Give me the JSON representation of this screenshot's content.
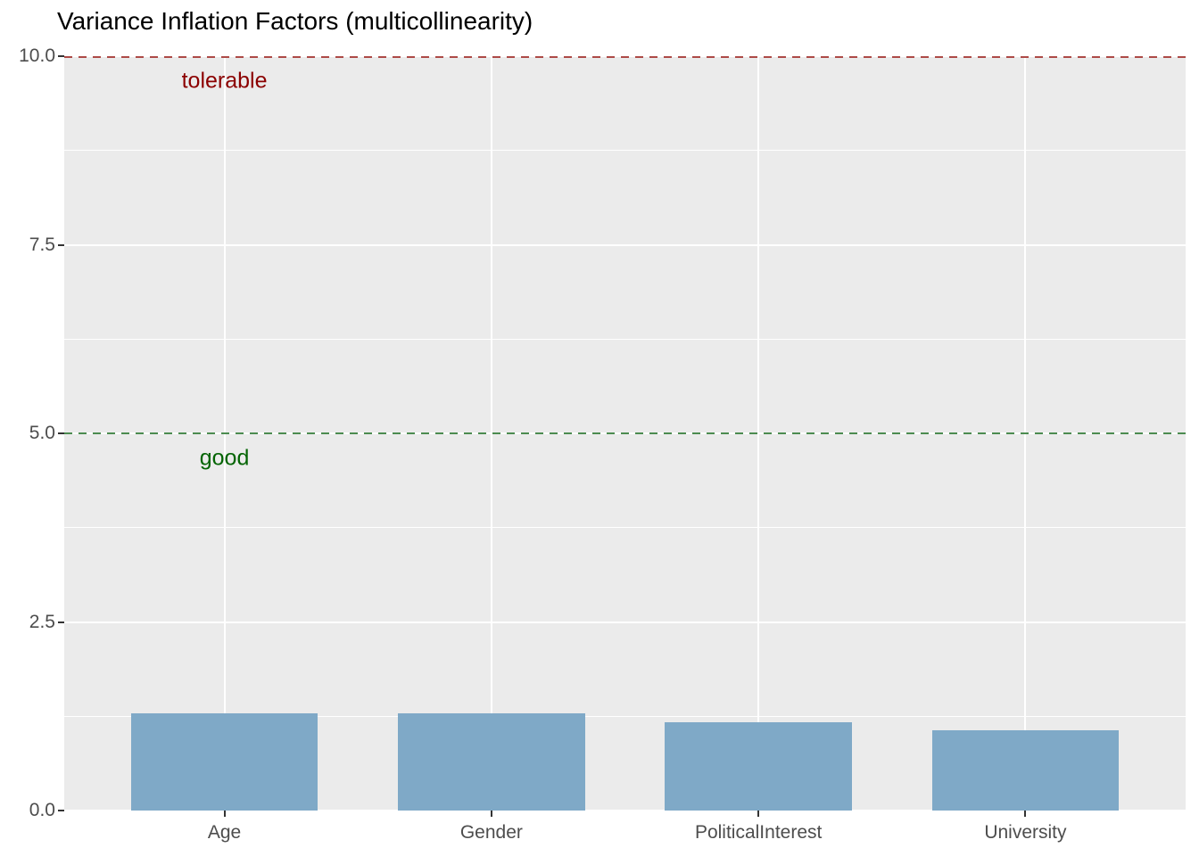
{
  "chart_data": {
    "type": "bar",
    "title": "Variance Inflation Factors (multicollinearity)",
    "categories": [
      "Age",
      "Gender",
      "PoliticalInterest",
      "University"
    ],
    "values": [
      1.29,
      1.29,
      1.17,
      1.06
    ],
    "xlabel": "",
    "ylabel": "",
    "ylim": [
      0,
      10
    ],
    "yticks": [
      {
        "value": 10.0,
        "label": "10.0"
      },
      {
        "value": 7.5,
        "label": "7.5"
      },
      {
        "value": 5.0,
        "label": "5.0"
      },
      {
        "value": 2.5,
        "label": "2.5"
      },
      {
        "value": 0.0,
        "label": "0.0"
      }
    ],
    "grid": true,
    "legend": "none",
    "reference_lines": [
      {
        "value": 10,
        "label": "tolerable",
        "line_color": "#ad4a47",
        "label_color": "#8b0000",
        "style": "dashed"
      },
      {
        "value": 5,
        "label": "good",
        "line_color": "#4c8c50",
        "label_color": "#046404",
        "style": "dashed"
      }
    ],
    "colors": {
      "bar": "#7fa9c7",
      "panel_background": "#ebebeb",
      "gridline": "#ffffff",
      "axis_text": "#4d4d4d",
      "title_text": "#000000",
      "tick_mark": "#333333"
    }
  }
}
